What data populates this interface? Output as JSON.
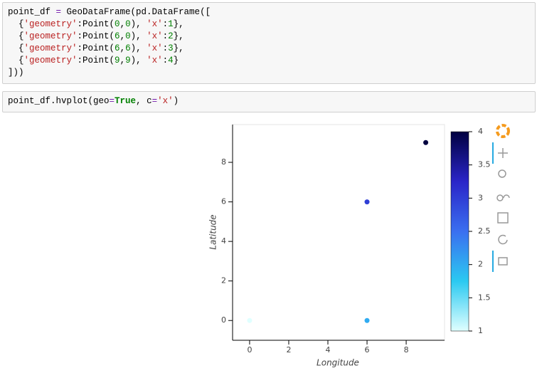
{
  "cells": [
    {
      "lines": [
        [
          {
            "text": "point_df "
          },
          {
            "text": "=",
            "color": "#7216ab"
          },
          {
            "text": " GeoDataFrame(pd.DataFrame(["
          }
        ],
        [
          {
            "text": "  {"
          },
          {
            "text": "'geometry'",
            "color": "#ba2121"
          },
          {
            "text": ":Point("
          },
          {
            "text": "0",
            "color": "#008000"
          },
          {
            "text": ","
          },
          {
            "text": "0",
            "color": "#008000"
          },
          {
            "text": "), "
          },
          {
            "text": "'x'",
            "color": "#ba2121"
          },
          {
            "text": ":"
          },
          {
            "text": "1",
            "color": "#008000"
          },
          {
            "text": "},"
          }
        ],
        [
          {
            "text": "  {"
          },
          {
            "text": "'geometry'",
            "color": "#ba2121"
          },
          {
            "text": ":Point("
          },
          {
            "text": "6",
            "color": "#008000"
          },
          {
            "text": ","
          },
          {
            "text": "0",
            "color": "#008000"
          },
          {
            "text": "), "
          },
          {
            "text": "'x'",
            "color": "#ba2121"
          },
          {
            "text": ":"
          },
          {
            "text": "2",
            "color": "#008000"
          },
          {
            "text": "},"
          }
        ],
        [
          {
            "text": "  {"
          },
          {
            "text": "'geometry'",
            "color": "#ba2121"
          },
          {
            "text": ":Point("
          },
          {
            "text": "6",
            "color": "#008000"
          },
          {
            "text": ","
          },
          {
            "text": "6",
            "color": "#008000"
          },
          {
            "text": "), "
          },
          {
            "text": "'x'",
            "color": "#ba2121"
          },
          {
            "text": ":"
          },
          {
            "text": "3",
            "color": "#008000"
          },
          {
            "text": "},"
          }
        ],
        [
          {
            "text": "  {"
          },
          {
            "text": "'geometry'",
            "color": "#ba2121"
          },
          {
            "text": ":Point("
          },
          {
            "text": "9",
            "color": "#008000"
          },
          {
            "text": ","
          },
          {
            "text": "9",
            "color": "#008000"
          },
          {
            "text": "), "
          },
          {
            "text": "'x'",
            "color": "#ba2121"
          },
          {
            "text": ":"
          },
          {
            "text": "4",
            "color": "#008000"
          },
          {
            "text": "}"
          }
        ],
        [
          {
            "text": "]))"
          }
        ]
      ]
    },
    {
      "lines": [
        [
          {
            "text": "point_df.hvplot(geo"
          },
          {
            "text": "=",
            "color": "#7216ab"
          },
          {
            "text": "True",
            "color": "#008000",
            "bold": true
          },
          {
            "text": ", c"
          },
          {
            "text": "=",
            "color": "#7216ab"
          },
          {
            "text": "'x'",
            "color": "#ba2121"
          },
          {
            "text": ")"
          }
        ]
      ]
    }
  ],
  "chart_data": {
    "type": "scatter",
    "x_label": "Longitude",
    "y_label": "Latitude",
    "x": [
      0,
      6,
      6,
      9
    ],
    "y": [
      0,
      0,
      6,
      9
    ],
    "c": [
      1,
      2,
      3,
      4
    ],
    "xlim": [
      -0.87,
      9.96
    ],
    "ylim": [
      -1.0,
      9.91
    ],
    "xticks": [
      0,
      2,
      4,
      6,
      8
    ],
    "yticks": [
      0,
      2,
      4,
      6,
      8
    ],
    "clim": [
      1,
      4
    ],
    "cticks": [
      1,
      1.5,
      2,
      2.5,
      3,
      3.5,
      4
    ],
    "cmap": [
      "#e0ffff",
      "#2bc9f1",
      "#3a6ff0",
      "#2a25c8",
      "#000040"
    ]
  }
}
